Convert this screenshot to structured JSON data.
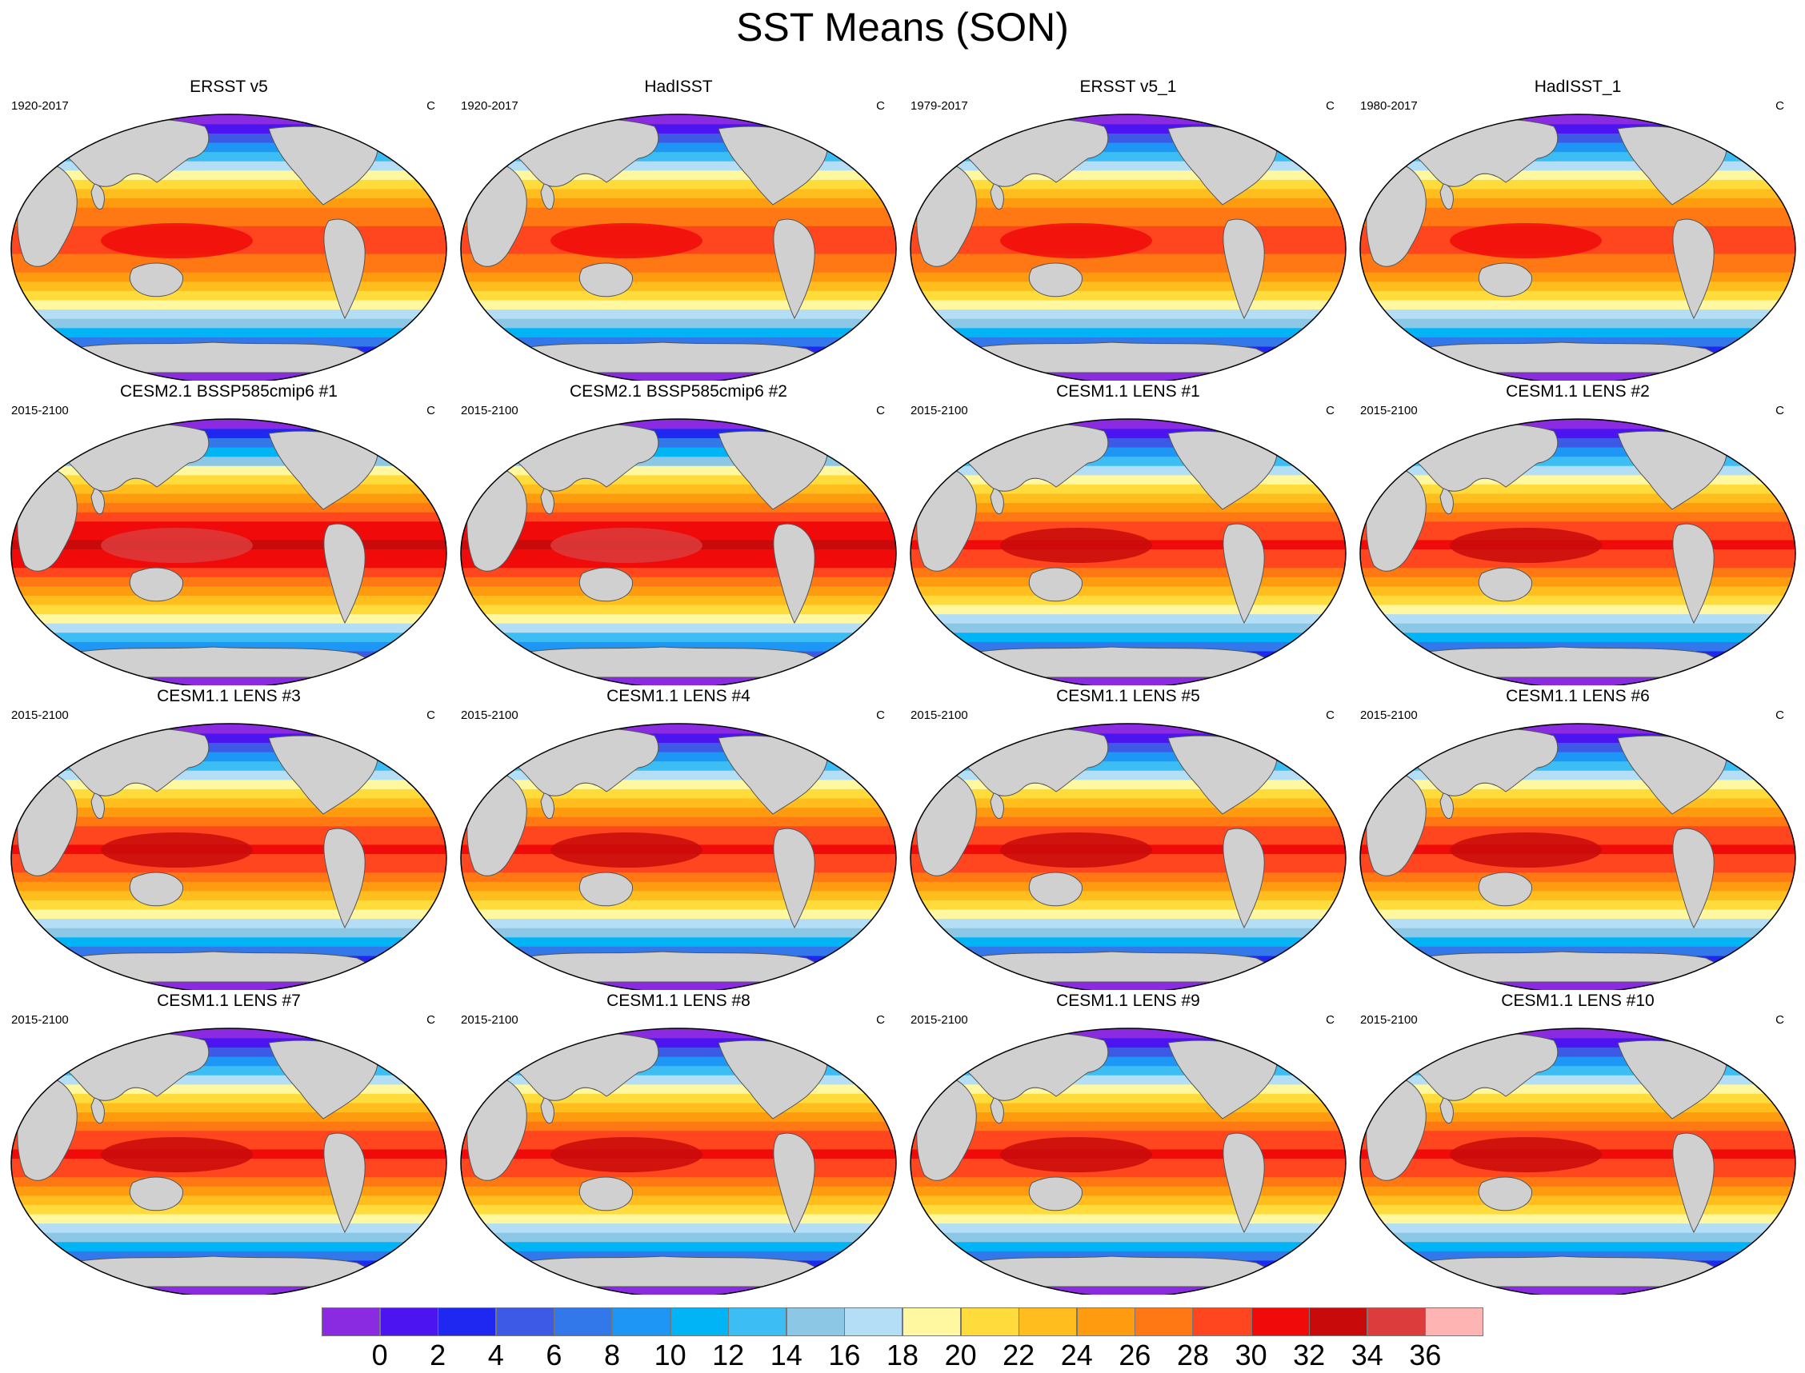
{
  "title": "SST Means (SON)",
  "panels": [
    {
      "title": "ERSST v5",
      "period": "1920-2017",
      "units": "C",
      "variant": "obs"
    },
    {
      "title": "HadISST",
      "period": "1920-2017",
      "units": "C",
      "variant": "obs"
    },
    {
      "title": "ERSST v5_1",
      "period": "1979-2017",
      "units": "C",
      "variant": "obs"
    },
    {
      "title": "HadISST_1",
      "period": "1980-2017",
      "units": "C",
      "variant": "obs"
    },
    {
      "title": "CESM2.1 BSSP585cmip6 #1",
      "period": "2015-2100",
      "units": "C",
      "variant": "hot"
    },
    {
      "title": "CESM2.1 BSSP585cmip6 #2",
      "period": "2015-2100",
      "units": "C",
      "variant": "hot"
    },
    {
      "title": "CESM1.1 LENS #1",
      "period": "2015-2100",
      "units": "C",
      "variant": "model"
    },
    {
      "title": "CESM1.1 LENS #2",
      "period": "2015-2100",
      "units": "C",
      "variant": "model"
    },
    {
      "title": "CESM1.1 LENS #3",
      "period": "2015-2100",
      "units": "C",
      "variant": "model"
    },
    {
      "title": "CESM1.1 LENS #4",
      "period": "2015-2100",
      "units": "C",
      "variant": "model"
    },
    {
      "title": "CESM1.1 LENS #5",
      "period": "2015-2100",
      "units": "C",
      "variant": "model"
    },
    {
      "title": "CESM1.1 LENS #6",
      "period": "2015-2100",
      "units": "C",
      "variant": "model"
    },
    {
      "title": "CESM1.1 LENS #7",
      "period": "2015-2100",
      "units": "C",
      "variant": "model"
    },
    {
      "title": "CESM1.1 LENS #8",
      "period": "2015-2100",
      "units": "C",
      "variant": "model"
    },
    {
      "title": "CESM1.1 LENS #9",
      "period": "2015-2100",
      "units": "C",
      "variant": "model"
    },
    {
      "title": "CESM1.1 LENS #10",
      "period": "2015-2100",
      "units": "C",
      "variant": "model"
    }
  ],
  "colorbar": {
    "labels": [
      "0",
      "2",
      "4",
      "6",
      "8",
      "10",
      "12",
      "14",
      "16",
      "18",
      "20",
      "22",
      "24",
      "26",
      "28",
      "30",
      "32",
      "34",
      "36"
    ],
    "colors": [
      "#8a2be2",
      "#4b14f0",
      "#1e28f0",
      "#3c5ae6",
      "#3278eb",
      "#1e96f5",
      "#00b4f5",
      "#3cbef5",
      "#8cc8e6",
      "#b4def5",
      "#fff8a0",
      "#ffdc3c",
      "#ffbe1e",
      "#ff9b0f",
      "#ff7814",
      "#ff461e",
      "#f00a0a",
      "#c80a0a",
      "#dc3c3c",
      "#ffb4b4"
    ]
  },
  "land_color": "#d0d0d0"
}
